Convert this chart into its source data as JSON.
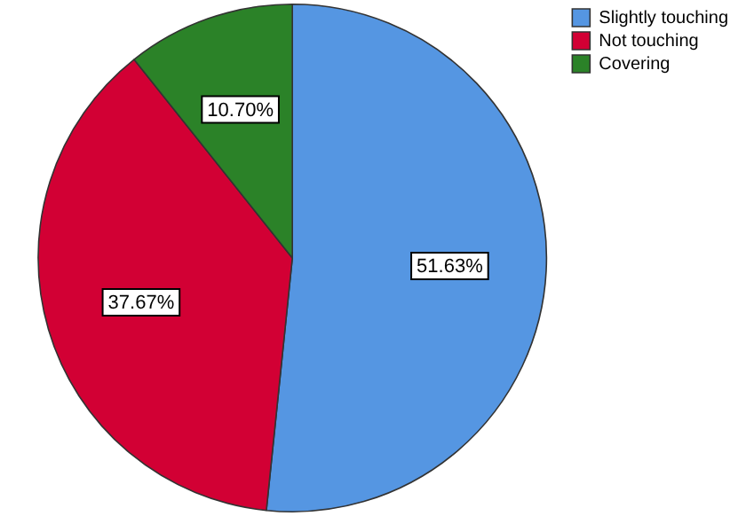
{
  "chart_data": {
    "type": "pie",
    "categories": [
      "Slightly touching",
      "Not touching",
      "Covering"
    ],
    "values": [
      51.63,
      37.67,
      10.7
    ],
    "value_labels": [
      "51.63%",
      "37.67%",
      "10.70%"
    ],
    "colors": [
      "#5596e2",
      "#d20034",
      "#2b8228"
    ],
    "legend": "top right"
  }
}
